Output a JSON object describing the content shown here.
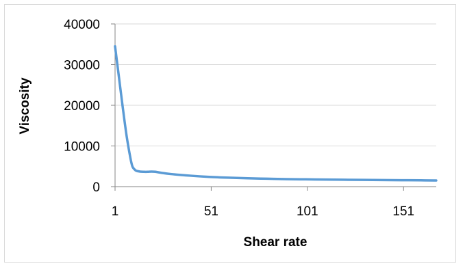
{
  "chart_data": {
    "type": "line",
    "title": "",
    "xlabel": "Shear rate",
    "ylabel": "Viscosity",
    "xlim": [
      1,
      168
    ],
    "ylim": [
      0,
      40000
    ],
    "x_ticks": [
      1,
      51,
      101,
      151
    ],
    "y_ticks": [
      0,
      10000,
      20000,
      30000,
      40000
    ],
    "grid": "horizontal",
    "legend": "none",
    "series": [
      {
        "color": "#5b9bd5",
        "x": [
          1,
          3,
          5,
          7,
          9,
          10,
          11,
          12,
          14,
          16,
          18,
          20,
          22,
          25,
          30,
          40,
          50,
          60,
          70,
          80,
          90,
          100,
          110,
          120,
          130,
          140,
          150,
          160,
          168
        ],
        "y": [
          34500,
          27000,
          19500,
          12500,
          7000,
          5000,
          4300,
          3900,
          3700,
          3650,
          3650,
          3700,
          3650,
          3400,
          3100,
          2700,
          2400,
          2200,
          2050,
          1950,
          1850,
          1800,
          1750,
          1700,
          1650,
          1620,
          1580,
          1550,
          1520
        ]
      }
    ]
  }
}
